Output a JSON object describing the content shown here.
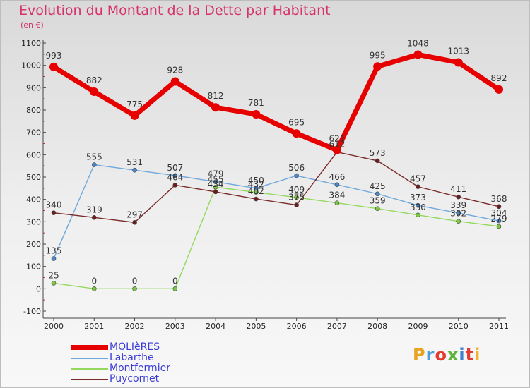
{
  "title": "Evolution du Montant de la Dette par Habitant",
  "subtitle": "(en €)",
  "logo_text": "Proxiti",
  "logo_colors": [
    "#e8a320",
    "#4a9fd8",
    "#e23b32",
    "#5fb43c",
    "#3f83cc",
    "#e23b32",
    "#f0b22a"
  ],
  "chart_data": {
    "type": "line",
    "title": "Evolution du Montant de la Dette par Habitant",
    "subtitle": "(en €)",
    "xlabel": "",
    "ylabel": "",
    "x": [
      "2000",
      "2001",
      "2002",
      "2003",
      "2004",
      "2005",
      "2006",
      "2007",
      "2008",
      "2009",
      "2010",
      "2011"
    ],
    "ylim": [
      -100,
      1100
    ],
    "yticks": [
      -100,
      0,
      100,
      200,
      300,
      400,
      500,
      600,
      700,
      800,
      900,
      1000,
      1100
    ],
    "grid": false,
    "legend_position": "bottom-left",
    "series": [
      {
        "name": "MOLIèRES",
        "color": "#e60000",
        "bold": true,
        "values": [
          993,
          882,
          775,
          928,
          812,
          781,
          695,
          621,
          995,
          1048,
          1013,
          892
        ]
      },
      {
        "name": "Labarthe",
        "color": "#6fa8dc",
        "marker": "#4a86c8",
        "values": [
          135,
          555,
          531,
          507,
          479,
          450,
          506,
          466,
          425,
          373,
          339,
          304
        ]
      },
      {
        "name": "Montfermier",
        "color": "#93d95d",
        "marker": "#7cc742",
        "values": [
          25,
          0,
          0,
          0,
          455,
          432,
          409,
          384,
          359,
          330,
          302,
          279
        ]
      },
      {
        "name": "Puycornet",
        "color": "#7a2a2a",
        "marker": "#6b1e1e",
        "values": [
          340,
          319,
          297,
          464,
          434,
          402,
          375,
          612,
          573,
          457,
          411,
          368
        ]
      }
    ],
    "data_labels": [
      [
        "993",
        "882",
        "775",
        "928",
        "812",
        "781",
        "695",
        "621",
        "995",
        "1048",
        "1013",
        "892"
      ],
      [
        "135",
        "555",
        "531",
        "507",
        "479",
        "450",
        "506",
        "466",
        "425",
        "373",
        "339",
        "304"
      ],
      [
        "25",
        "0",
        "0",
        "0",
        "455",
        "432",
        "409",
        "384",
        "359",
        "330",
        "302",
        "279"
      ],
      [
        "340",
        "319",
        "297",
        "464",
        "434",
        "402",
        "375",
        "612",
        "573",
        "457",
        "411",
        "368"
      ]
    ]
  }
}
